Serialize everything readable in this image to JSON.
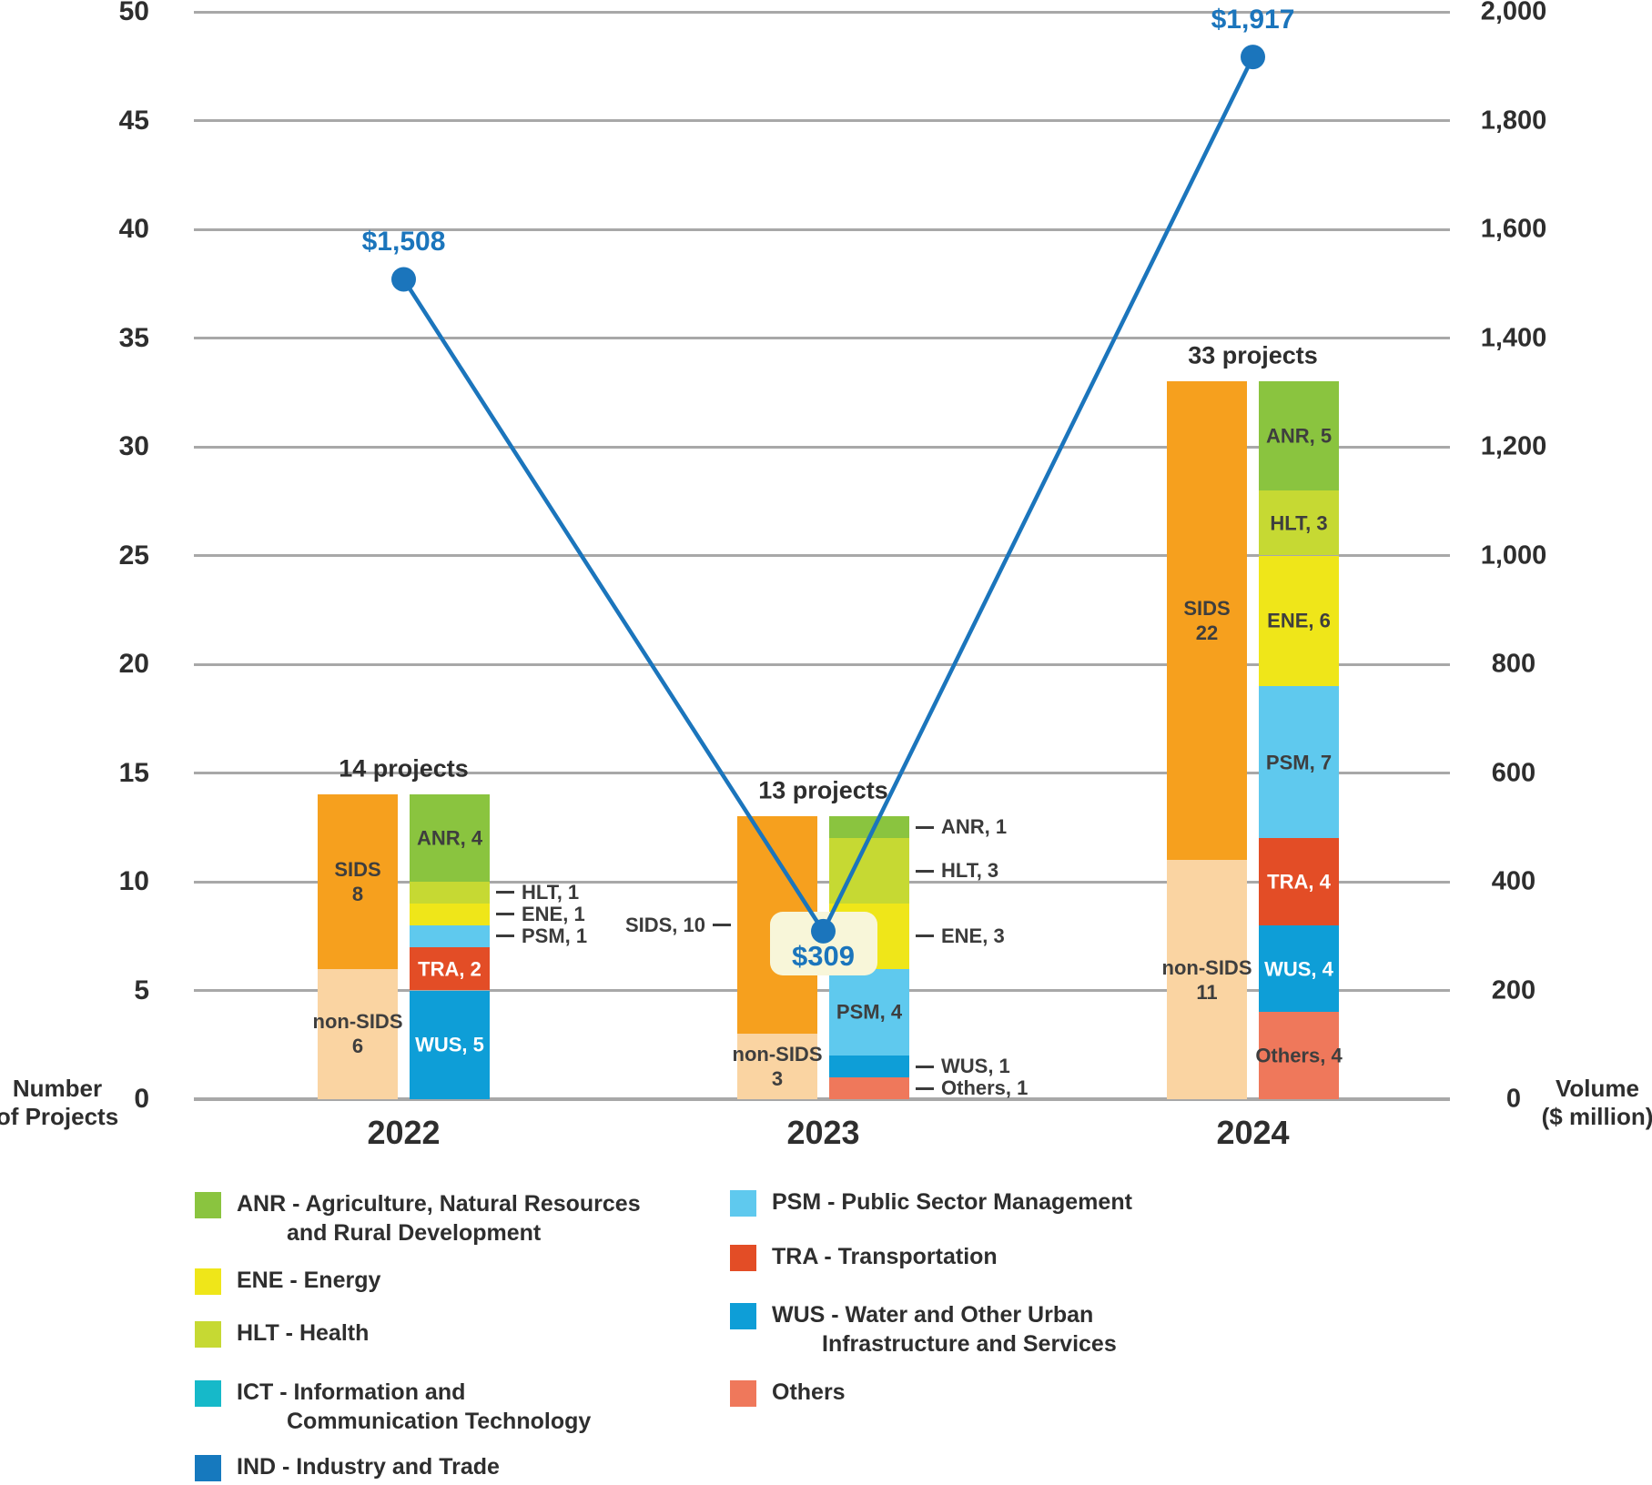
{
  "chart_data": {
    "type": "bar",
    "subtype": "stacked-bar-with-line",
    "years": [
      "2022",
      "2023",
      "2024"
    ],
    "left_axis": {
      "title_lines": [
        "Number",
        "of Projects"
      ],
      "min": 0,
      "max": 50,
      "step": 5,
      "tick_labels": [
        "0",
        "5",
        "10",
        "15",
        "20",
        "25",
        "30",
        "35",
        "40",
        "45",
        "50"
      ],
      "grid": true
    },
    "right_axis": {
      "title_lines": [
        "Volume",
        "($ million)"
      ],
      "min": 0,
      "max": 2000,
      "step": 200,
      "tick_labels": [
        "0",
        "200",
        "400",
        "600",
        "800",
        "1,000",
        "1,200",
        "1,400",
        "1,600",
        "1,800",
        "2,000"
      ]
    },
    "volume_line": {
      "name": "Volume ($ million)",
      "color": "#1b75bc",
      "points": [
        {
          "year": "2022",
          "value": 1508,
          "label": "$1,508",
          "label_style": "above"
        },
        {
          "year": "2023",
          "value": 309,
          "label": "$309",
          "label_style": "boxed",
          "box_color": "#f8f6d9"
        },
        {
          "year": "2024",
          "value": 1917,
          "label": "$1,917",
          "label_style": "above"
        }
      ]
    },
    "groups": [
      {
        "year": "2022",
        "total_projects": 14,
        "total_label": "14 projects",
        "sids_stack": [
          {
            "name": "SIDS",
            "value": 8,
            "color": "#f6a01e",
            "label_lines": [
              "SIDS",
              "8"
            ],
            "label": "inside"
          },
          {
            "name": "non-SIDS",
            "value": 6,
            "color": "#fad4a2",
            "label_lines": [
              "non-SIDS",
              "6"
            ],
            "label": "inside"
          }
        ],
        "sector_stack": [
          {
            "code": "ANR",
            "value": 4,
            "color": "#8ac43f",
            "label_text": "ANR, 4",
            "label": "inside"
          },
          {
            "code": "HLT",
            "value": 1,
            "color": "#c6d933",
            "label_text": "HLT, 1",
            "label": "callout-right"
          },
          {
            "code": "ENE",
            "value": 1,
            "color": "#efe619",
            "label_text": "ENE, 1",
            "label": "callout-right"
          },
          {
            "code": "PSM",
            "value": 1,
            "color": "#5fc9ee",
            "label_text": "PSM, 1",
            "label": "callout-right"
          },
          {
            "code": "TRA",
            "value": 2,
            "color": "#e34d26",
            "label_text": "TRA, 2",
            "label": "inside",
            "text_color": "#ffffff"
          },
          {
            "code": "WUS",
            "value": 5,
            "color": "#0e9ed7",
            "label_text": "WUS, 5",
            "label": "inside",
            "text_color": "#ffffff"
          }
        ]
      },
      {
        "year": "2023",
        "total_projects": 13,
        "total_label": "13 projects",
        "sids_stack": [
          {
            "name": "SIDS",
            "value": 10,
            "color": "#f6a01e",
            "label_text": "SIDS, 10",
            "label": "callout-left"
          },
          {
            "name": "non-SIDS",
            "value": 3,
            "color": "#fad4a2",
            "label_lines": [
              "non-SIDS",
              "3"
            ],
            "label": "inside"
          }
        ],
        "sector_stack": [
          {
            "code": "ANR",
            "value": 1,
            "color": "#8ac43f",
            "label_text": "ANR, 1",
            "label": "callout-right"
          },
          {
            "code": "HLT",
            "value": 3,
            "color": "#c6d933",
            "label_text": "HLT, 3",
            "label": "callout-right"
          },
          {
            "code": "ENE",
            "value": 3,
            "color": "#efe619",
            "label_text": "ENE, 3",
            "label": "callout-right"
          },
          {
            "code": "PSM",
            "value": 4,
            "color": "#5fc9ee",
            "label_text": "PSM, 4",
            "label": "inside"
          },
          {
            "code": "WUS",
            "value": 1,
            "color": "#0e9ed7",
            "label_text": "WUS, 1",
            "label": "callout-right"
          },
          {
            "code": "Others",
            "value": 1,
            "color": "#ef785b",
            "label_text": "Others, 1",
            "label": "callout-right"
          }
        ]
      },
      {
        "year": "2024",
        "total_projects": 33,
        "total_label": "33 projects",
        "sids_stack": [
          {
            "name": "SIDS",
            "value": 22,
            "color": "#f6a01e",
            "label_lines": [
              "SIDS",
              "22"
            ],
            "label": "inside"
          },
          {
            "name": "non-SIDS",
            "value": 11,
            "color": "#fad4a2",
            "label_lines": [
              "non-SIDS",
              "11"
            ],
            "label": "inside"
          }
        ],
        "sector_stack": [
          {
            "code": "ANR",
            "value": 5,
            "color": "#8ac43f",
            "label_text": "ANR, 5",
            "label": "inside"
          },
          {
            "code": "HLT",
            "value": 3,
            "color": "#c6d933",
            "label_text": "HLT, 3",
            "label": "inside"
          },
          {
            "code": "ENE",
            "value": 6,
            "color": "#efe619",
            "label_text": "ENE, 6",
            "label": "inside"
          },
          {
            "code": "PSM",
            "value": 7,
            "color": "#5fc9ee",
            "label_text": "PSM, 7",
            "label": "inside"
          },
          {
            "code": "TRA",
            "value": 4,
            "color": "#e34d26",
            "label_text": "TRA, 4",
            "label": "inside",
            "text_color": "#ffffff"
          },
          {
            "code": "WUS",
            "value": 4,
            "color": "#0e9ed7",
            "label_text": "WUS, 4",
            "label": "inside",
            "text_color": "#ffffff"
          },
          {
            "code": "Others",
            "value": 4,
            "color": "#ef785b",
            "label_text": "Others, 4",
            "label": "inside"
          }
        ]
      }
    ],
    "colors": {
      "grid": "#a8a8a8",
      "text": "#2e2e2e",
      "line": "#1b75bc"
    }
  },
  "legend": {
    "columns": [
      [
        {
          "code": "ANR",
          "color": "#8ac43f",
          "lines": [
            "ANR - Agriculture, Natural Resources",
            "and Rural Development"
          ]
        },
        {
          "code": "ENE",
          "color": "#efe619",
          "lines": [
            "ENE - Energy"
          ]
        },
        {
          "code": "HLT",
          "color": "#c6d933",
          "lines": [
            "HLT - Health"
          ]
        },
        {
          "code": "ICT",
          "color": "#16b9c9",
          "lines": [
            "ICT - Information and",
            "Communication Technology"
          ]
        },
        {
          "code": "IND",
          "color": "#1679be",
          "lines": [
            "IND - Industry and Trade"
          ]
        }
      ],
      [
        {
          "code": "PSM",
          "color": "#5fc9ee",
          "lines": [
            "PSM - Public Sector Management"
          ]
        },
        {
          "code": "TRA",
          "color": "#e34d26",
          "lines": [
            "TRA - Transportation"
          ]
        },
        {
          "code": "WUS",
          "color": "#0e9ed7",
          "lines": [
            "WUS - Water and Other Urban",
            "Infrastructure and Services"
          ]
        },
        {
          "code": "Others",
          "color": "#ef785b",
          "lines": [
            "Others"
          ]
        }
      ]
    ]
  }
}
